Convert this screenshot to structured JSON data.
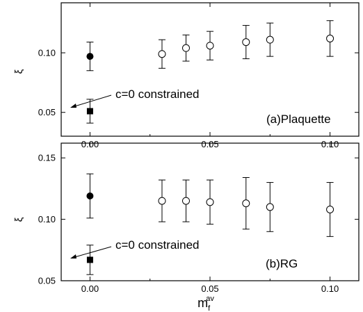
{
  "chart_data": [
    {
      "type": "scatter",
      "panel_label": "(a)Plaquette",
      "ylabel": "ξ",
      "xlim": [
        -0.012,
        0.112
      ],
      "ylim": [
        0.03,
        0.142
      ],
      "x_ticks": [
        "0.00",
        "0.05",
        "0.10"
      ],
      "y_ticks": [
        "0.05",
        "0.10"
      ],
      "annotation": "c=0 constrained",
      "series": [
        {
          "marker": "filled-circle",
          "points": [
            {
              "x": 0.0,
              "y": 0.097,
              "err": 0.012
            }
          ]
        },
        {
          "marker": "filled-square",
          "points": [
            {
              "x": 0.0,
              "y": 0.051,
              "err": 0.01
            }
          ]
        },
        {
          "marker": "open-circle",
          "points": [
            {
              "x": 0.03,
              "y": 0.099,
              "err": 0.012
            },
            {
              "x": 0.04,
              "y": 0.104,
              "err": 0.011
            },
            {
              "x": 0.05,
              "y": 0.106,
              "err": 0.012
            },
            {
              "x": 0.065,
              "y": 0.109,
              "err": 0.014
            },
            {
              "x": 0.075,
              "y": 0.111,
              "err": 0.014
            },
            {
              "x": 0.1,
              "y": 0.112,
              "err": 0.015
            }
          ]
        }
      ]
    },
    {
      "type": "scatter",
      "panel_label": "(b)RG",
      "xlabel": "m",
      "xlabel_sub": "f",
      "xlabel_sup": "av",
      "ylabel": "ξ",
      "xlim": [
        -0.012,
        0.112
      ],
      "ylim": [
        0.05,
        0.162
      ],
      "x_ticks": [
        "0.00",
        "0.05",
        "0.10"
      ],
      "y_ticks": [
        "0.05",
        "0.10",
        "0.15"
      ],
      "annotation": "c=0 constrained",
      "series": [
        {
          "marker": "filled-circle",
          "points": [
            {
              "x": 0.0,
              "y": 0.119,
              "err": 0.018
            }
          ]
        },
        {
          "marker": "filled-square",
          "points": [
            {
              "x": 0.0,
              "y": 0.067,
              "err": 0.012
            }
          ]
        },
        {
          "marker": "open-circle",
          "points": [
            {
              "x": 0.03,
              "y": 0.115,
              "err": 0.017
            },
            {
              "x": 0.04,
              "y": 0.115,
              "err": 0.017
            },
            {
              "x": 0.05,
              "y": 0.114,
              "err": 0.018
            },
            {
              "x": 0.065,
              "y": 0.113,
              "err": 0.021
            },
            {
              "x": 0.075,
              "y": 0.11,
              "err": 0.02
            },
            {
              "x": 0.1,
              "y": 0.108,
              "err": 0.022
            }
          ]
        }
      ]
    }
  ]
}
